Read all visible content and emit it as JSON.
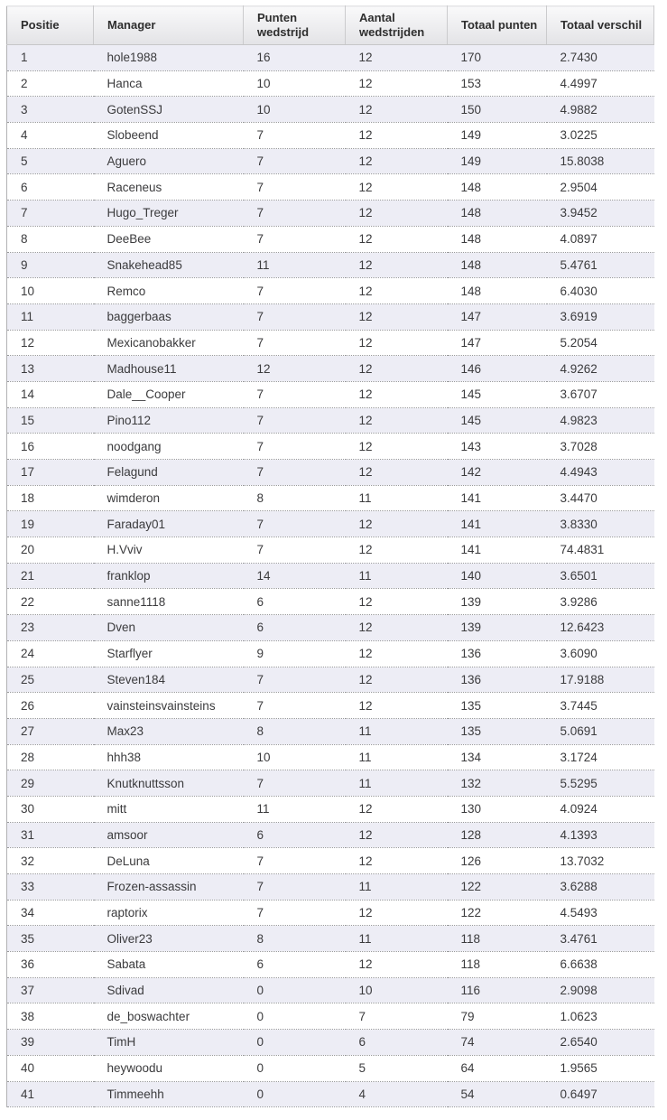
{
  "table": {
    "name": "manager-standings",
    "columns": [
      {
        "key": "positie",
        "label": "Positie"
      },
      {
        "key": "manager",
        "label": "Manager"
      },
      {
        "key": "punten-wedstrijd",
        "label": "Punten wedstrijd"
      },
      {
        "key": "aantal-wedstrijden",
        "label": "Aantal wedstrijden"
      },
      {
        "key": "totaal-punten",
        "label": "Totaal punten"
      },
      {
        "key": "totaal-verschil",
        "label": "Totaal verschil"
      }
    ],
    "rows": [
      [
        "1",
        "hole1988",
        "16",
        "12",
        "170",
        "2.7430"
      ],
      [
        "2",
        "Hanca",
        "10",
        "12",
        "153",
        "4.4997"
      ],
      [
        "3",
        "GotenSSJ",
        "10",
        "12",
        "150",
        "4.9882"
      ],
      [
        "4",
        "Slobeend",
        "7",
        "12",
        "149",
        "3.0225"
      ],
      [
        "5",
        "Aguero",
        "7",
        "12",
        "149",
        "15.8038"
      ],
      [
        "6",
        "Raceneus",
        "7",
        "12",
        "148",
        "2.9504"
      ],
      [
        "7",
        "Hugo_Treger",
        "7",
        "12",
        "148",
        "3.9452"
      ],
      [
        "8",
        "DeeBee",
        "7",
        "12",
        "148",
        "4.0897"
      ],
      [
        "9",
        "Snakehead85",
        "11",
        "12",
        "148",
        "5.4761"
      ],
      [
        "10",
        "Remco",
        "7",
        "12",
        "148",
        "6.4030"
      ],
      [
        "11",
        "baggerbaas",
        "7",
        "12",
        "147",
        "3.6919"
      ],
      [
        "12",
        "Mexicanobakker",
        "7",
        "12",
        "147",
        "5.2054"
      ],
      [
        "13",
        "Madhouse11",
        "12",
        "12",
        "146",
        "4.9262"
      ],
      [
        "14",
        "Dale__Cooper",
        "7",
        "12",
        "145",
        "3.6707"
      ],
      [
        "15",
        "Pino112",
        "7",
        "12",
        "145",
        "4.9823"
      ],
      [
        "16",
        "noodgang",
        "7",
        "12",
        "143",
        "3.7028"
      ],
      [
        "17",
        "Felagund",
        "7",
        "12",
        "142",
        "4.4943"
      ],
      [
        "18",
        "wimderon",
        "8",
        "11",
        "141",
        "3.4470"
      ],
      [
        "19",
        "Faraday01",
        "7",
        "12",
        "141",
        "3.8330"
      ],
      [
        "20",
        "H.Vviv",
        "7",
        "12",
        "141",
        "74.4831"
      ],
      [
        "21",
        "franklop",
        "14",
        "11",
        "140",
        "3.6501"
      ],
      [
        "22",
        "sanne1118",
        "6",
        "12",
        "139",
        "3.9286"
      ],
      [
        "23",
        "Dven",
        "6",
        "12",
        "139",
        "12.6423"
      ],
      [
        "24",
        "Starflyer",
        "9",
        "12",
        "136",
        "3.6090"
      ],
      [
        "25",
        "Steven184",
        "7",
        "12",
        "136",
        "17.9188"
      ],
      [
        "26",
        "vainsteinsvainsteins",
        "7",
        "12",
        "135",
        "3.7445"
      ],
      [
        "27",
        "Max23",
        "8",
        "11",
        "135",
        "5.0691"
      ],
      [
        "28",
        "hhh38",
        "10",
        "11",
        "134",
        "3.1724"
      ],
      [
        "29",
        "Knutknuttsson",
        "7",
        "11",
        "132",
        "5.5295"
      ],
      [
        "30",
        "mitt",
        "11",
        "12",
        "130",
        "4.0924"
      ],
      [
        "31",
        "amsoor",
        "6",
        "12",
        "128",
        "4.1393"
      ],
      [
        "32",
        "DeLuna",
        "7",
        "12",
        "126",
        "13.7032"
      ],
      [
        "33",
        "Frozen-assassin",
        "7",
        "11",
        "122",
        "3.6288"
      ],
      [
        "34",
        "raptorix",
        "7",
        "12",
        "122",
        "4.5493"
      ],
      [
        "35",
        "Oliver23",
        "8",
        "11",
        "118",
        "3.4761"
      ],
      [
        "36",
        "Sabata",
        "6",
        "12",
        "118",
        "6.6638"
      ],
      [
        "37",
        "Sdivad",
        "0",
        "10",
        "116",
        "2.9098"
      ],
      [
        "38",
        "de_boswachter",
        "0",
        "7",
        "79",
        "1.0623"
      ],
      [
        "39",
        "TimH",
        "0",
        "6",
        "74",
        "2.6540"
      ],
      [
        "40",
        "heywoodu",
        "0",
        "5",
        "64",
        "1.9565"
      ],
      [
        "41",
        "Timmeehh",
        "0",
        "4",
        "54",
        "0.6497"
      ]
    ],
    "colors": {
      "header_bg_top": "#f9f9fa",
      "header_bg_bottom": "#e3e3e6",
      "row_odd_bg": "#ededf5",
      "row_even_bg": "#ffffff",
      "row_divider": "#999a9c",
      "header_text": "#2e2e2e",
      "cell_text": "#3b3b3d"
    }
  }
}
